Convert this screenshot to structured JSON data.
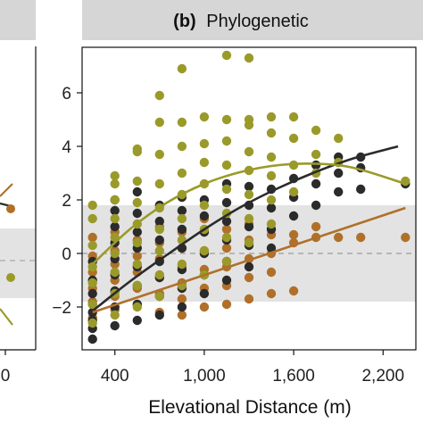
{
  "chart_data": {
    "type": "scatter",
    "title": "Phylogenetic",
    "panel_tag": "(b)",
    "left_panel_tick_labels": {
      "x": [
        "0"
      ]
    },
    "xlabel": "Elevational Distance (m)",
    "ylabel": "",
    "xlim": [
      180,
      2420
    ],
    "ylim": [
      -3.6,
      7.7
    ],
    "xticks": [
      400,
      1000,
      1600,
      2200
    ],
    "xtick_labels": [
      "400",
      "1,000",
      "1,600",
      "2,200"
    ],
    "yticks": [
      -2,
      0,
      2,
      4,
      6
    ],
    "ytick_labels": [
      "−2",
      "0",
      "2",
      "4",
      "6"
    ],
    "null_band": [
      -1.8,
      1.8
    ],
    "reference_line": 0,
    "colors": {
      "black": "#2b2b2b",
      "olive": "#9a9a2a",
      "brown": "#b0702a",
      "band": "#e3e3e3",
      "strip": "#d6d6d6"
    },
    "series": [
      {
        "color": "black",
        "points": [
          [
            250,
            -3.2
          ],
          [
            250,
            -2.8
          ],
          [
            250,
            -2.5
          ],
          [
            250,
            -2.2
          ],
          [
            250,
            -1.9
          ],
          [
            250,
            -1.5
          ],
          [
            250,
            -1.0
          ],
          [
            250,
            -0.3
          ],
          [
            400,
            -2.7
          ],
          [
            400,
            -2.0
          ],
          [
            400,
            -1.4
          ],
          [
            400,
            -0.8
          ],
          [
            400,
            -0.2
          ],
          [
            400,
            0.4
          ],
          [
            400,
            1.0
          ],
          [
            400,
            1.6
          ],
          [
            400,
            2.0
          ],
          [
            550,
            -2.5
          ],
          [
            550,
            -1.9
          ],
          [
            550,
            -1.2
          ],
          [
            550,
            -0.5
          ],
          [
            550,
            0.2
          ],
          [
            550,
            0.8
          ],
          [
            550,
            1.5
          ],
          [
            550,
            2.3
          ],
          [
            700,
            -2.3
          ],
          [
            700,
            -1.6
          ],
          [
            700,
            -0.9
          ],
          [
            700,
            -0.3
          ],
          [
            700,
            0.5
          ],
          [
            700,
            1.2
          ],
          [
            700,
            1.8
          ],
          [
            850,
            -2.0
          ],
          [
            850,
            -1.3
          ],
          [
            850,
            -0.6
          ],
          [
            850,
            0.2
          ],
          [
            850,
            0.9
          ],
          [
            850,
            1.6
          ],
          [
            850,
            2.1
          ],
          [
            1000,
            -1.5
          ],
          [
            1000,
            -0.8
          ],
          [
            1000,
            0.0
          ],
          [
            1000,
            0.8
          ],
          [
            1000,
            1.4
          ],
          [
            1000,
            2.0
          ],
          [
            1150,
            -1.0
          ],
          [
            1150,
            -0.3
          ],
          [
            1150,
            0.5
          ],
          [
            1150,
            1.2
          ],
          [
            1150,
            1.9
          ],
          [
            1150,
            2.6
          ],
          [
            1300,
            -0.5
          ],
          [
            1300,
            0.3
          ],
          [
            1300,
            1.0
          ],
          [
            1300,
            1.8
          ],
          [
            1300,
            2.5
          ],
          [
            1450,
            0.2
          ],
          [
            1450,
            0.9
          ],
          [
            1450,
            1.7
          ],
          [
            1450,
            2.4
          ],
          [
            1600,
            1.4
          ],
          [
            1600,
            2.1
          ],
          [
            1600,
            2.8
          ],
          [
            1750,
            1.8
          ],
          [
            1750,
            2.6
          ],
          [
            1750,
            3.3
          ],
          [
            1900,
            2.3
          ],
          [
            1900,
            3.0
          ],
          [
            1900,
            3.6
          ],
          [
            2050,
            2.4
          ],
          [
            2050,
            3.2
          ],
          [
            2050,
            3.6
          ],
          [
            2350,
            2.6
          ]
        ],
        "fit": [
          [
            250,
            -2.15
          ],
          [
            500,
            -1.05
          ],
          [
            750,
            -0.05
          ],
          [
            1000,
            0.9
          ],
          [
            1250,
            1.75
          ],
          [
            1500,
            2.45
          ],
          [
            1750,
            3.05
          ],
          [
            2000,
            3.55
          ],
          [
            2300,
            4.0
          ]
        ]
      },
      {
        "color": "olive",
        "points": [
          [
            250,
            -2.6
          ],
          [
            250,
            -1.9
          ],
          [
            250,
            -1.1
          ],
          [
            250,
            -0.5
          ],
          [
            250,
            0.3
          ],
          [
            250,
            1.3
          ],
          [
            250,
            1.8
          ],
          [
            400,
            -2.3
          ],
          [
            400,
            -1.5
          ],
          [
            400,
            -0.7
          ],
          [
            400,
            0.0
          ],
          [
            400,
            0.6
          ],
          [
            400,
            1.3
          ],
          [
            400,
            2.0
          ],
          [
            400,
            2.6
          ],
          [
            400,
            2.9
          ],
          [
            550,
            -2.0
          ],
          [
            550,
            -1.2
          ],
          [
            550,
            -0.4
          ],
          [
            550,
            0.4
          ],
          [
            550,
            1.1
          ],
          [
            550,
            1.9
          ],
          [
            550,
            2.7
          ],
          [
            550,
            3.8
          ],
          [
            550,
            3.9
          ],
          [
            700,
            -1.6
          ],
          [
            700,
            -0.8
          ],
          [
            700,
            0.1
          ],
          [
            700,
            0.9
          ],
          [
            700,
            1.7
          ],
          [
            700,
            2.6
          ],
          [
            700,
            3.7
          ],
          [
            700,
            4.9
          ],
          [
            700,
            5.9
          ],
          [
            850,
            -1.2
          ],
          [
            850,
            -0.4
          ],
          [
            850,
            0.5
          ],
          [
            850,
            1.3
          ],
          [
            850,
            2.2
          ],
          [
            850,
            3.0
          ],
          [
            850,
            4.0
          ],
          [
            850,
            4.9
          ],
          [
            850,
            6.9
          ],
          [
            1000,
            -0.8
          ],
          [
            1000,
            0.1
          ],
          [
            1000,
            0.9
          ],
          [
            1000,
            1.8
          ],
          [
            1000,
            2.6
          ],
          [
            1000,
            3.4
          ],
          [
            1000,
            4.1
          ],
          [
            1000,
            5.1
          ],
          [
            1150,
            -0.3
          ],
          [
            1150,
            0.6
          ],
          [
            1150,
            1.5
          ],
          [
            1150,
            2.4
          ],
          [
            1150,
            3.3
          ],
          [
            1150,
            4.2
          ],
          [
            1150,
            5.0
          ],
          [
            1150,
            7.4
          ],
          [
            1300,
            0.4
          ],
          [
            1300,
            1.3
          ],
          [
            1300,
            2.2
          ],
          [
            1300,
            3.1
          ],
          [
            1300,
            3.8
          ],
          [
            1300,
            4.8
          ],
          [
            1300,
            5.0
          ],
          [
            1300,
            7.3
          ],
          [
            1450,
            1.1
          ],
          [
            1450,
            2.0
          ],
          [
            1450,
            2.9
          ],
          [
            1450,
            3.6
          ],
          [
            1450,
            4.5
          ],
          [
            1450,
            5.1
          ],
          [
            1600,
            2.3
          ],
          [
            1600,
            3.3
          ],
          [
            1600,
            4.3
          ],
          [
            1600,
            5.1
          ],
          [
            1750,
            3.0
          ],
          [
            1750,
            3.7
          ],
          [
            1750,
            4.6
          ],
          [
            1900,
            3.4
          ],
          [
            1900,
            4.3
          ],
          [
            2350,
            2.7
          ]
        ],
        "fit": [
          [
            250,
            -0.4
          ],
          [
            500,
            0.9
          ],
          [
            750,
            1.9
          ],
          [
            1000,
            2.6
          ],
          [
            1250,
            3.05
          ],
          [
            1500,
            3.3
          ],
          [
            1750,
            3.35
          ],
          [
            2000,
            3.2
          ],
          [
            2350,
            2.6
          ]
        ]
      },
      {
        "color": "brown",
        "points": [
          [
            250,
            -2.4
          ],
          [
            250,
            -1.8
          ],
          [
            250,
            -1.3
          ],
          [
            250,
            -0.7
          ],
          [
            250,
            -0.1
          ],
          [
            250,
            0.6
          ],
          [
            400,
            -2.1
          ],
          [
            400,
            -1.6
          ],
          [
            400,
            -1.0
          ],
          [
            400,
            -0.4
          ],
          [
            400,
            0.1
          ],
          [
            400,
            0.8
          ],
          [
            550,
            -1.9
          ],
          [
            550,
            -1.3
          ],
          [
            550,
            -0.7
          ],
          [
            550,
            -0.1
          ],
          [
            550,
            0.5
          ],
          [
            700,
            -2.2
          ],
          [
            700,
            -1.5
          ],
          [
            700,
            -0.9
          ],
          [
            700,
            -0.2
          ],
          [
            700,
            0.4
          ],
          [
            700,
            1.0
          ],
          [
            850,
            -2.3
          ],
          [
            850,
            -1.7
          ],
          [
            850,
            -1.1
          ],
          [
            850,
            -0.5
          ],
          [
            850,
            0.2
          ],
          [
            850,
            0.8
          ],
          [
            1000,
            -2.0
          ],
          [
            1000,
            -1.3
          ],
          [
            1000,
            -0.6
          ],
          [
            1000,
            0.1
          ],
          [
            1000,
            0.8
          ],
          [
            1000,
            1.3
          ],
          [
            1150,
            -1.9
          ],
          [
            1150,
            -1.2
          ],
          [
            1150,
            -0.5
          ],
          [
            1150,
            0.2
          ],
          [
            1150,
            0.9
          ],
          [
            1300,
            -1.7
          ],
          [
            1300,
            -0.9
          ],
          [
            1300,
            -0.2
          ],
          [
            1300,
            0.5
          ],
          [
            1300,
            1.1
          ],
          [
            1450,
            -1.5
          ],
          [
            1450,
            -0.7
          ],
          [
            1450,
            0.0
          ],
          [
            1450,
            0.7
          ],
          [
            1600,
            -1.4
          ],
          [
            1600,
            0.4
          ],
          [
            1600,
            0.7
          ],
          [
            1750,
            0.6
          ],
          [
            1750,
            1.0
          ],
          [
            1900,
            0.6
          ],
          [
            2050,
            0.6
          ],
          [
            2350,
            0.6
          ]
        ],
        "fit": [
          [
            250,
            -2.2
          ],
          [
            2350,
            1.7
          ]
        ]
      }
    ]
  }
}
